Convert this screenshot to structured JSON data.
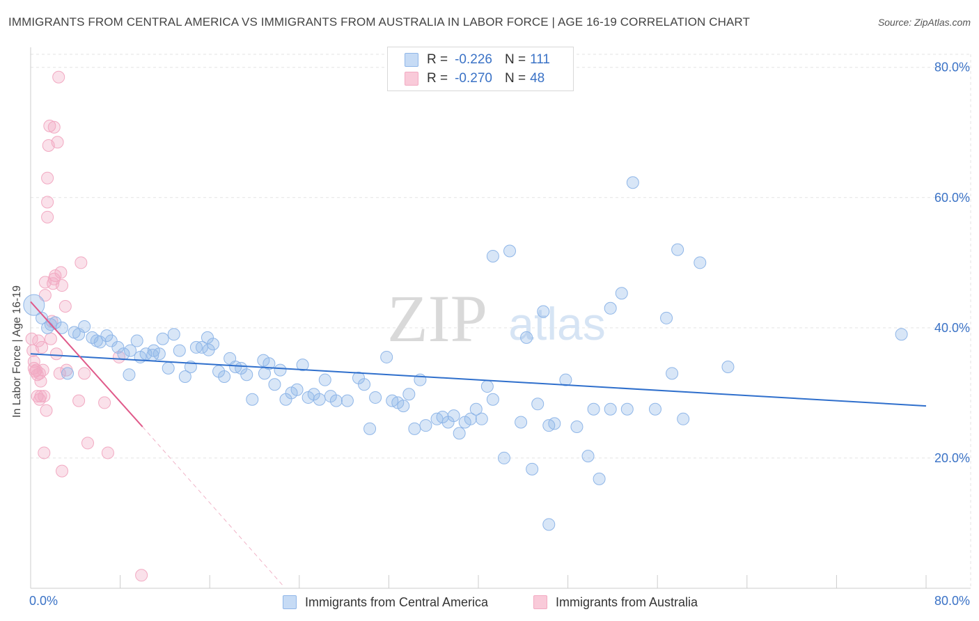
{
  "title": "IMMIGRANTS FROM CENTRAL AMERICA VS IMMIGRANTS FROM AUSTRALIA IN LABOR FORCE | AGE 16-19 CORRELATION CHART",
  "source": "Source: ZipAtlas.com",
  "watermark": {
    "zip": "ZIP",
    "atlas": "atlas"
  },
  "legend": {
    "r_label": "R =",
    "n_label": "N =",
    "series": [
      {
        "r": "-0.226",
        "n": "111"
      },
      {
        "r": "-0.270",
        "n": "48"
      }
    ]
  },
  "chart_data": {
    "type": "scatter",
    "title": "IMMIGRANTS FROM CENTRAL AMERICA VS IMMIGRANTS FROM AUSTRALIA IN LABOR FORCE | AGE 16-19 CORRELATION CHART",
    "xlabel": "",
    "ylabel": "In Labor Force | Age 16-19",
    "xlim": [
      0,
      80
    ],
    "ylim": [
      0,
      82
    ],
    "x_tick_labels": [
      "0.0%",
      "80.0%"
    ],
    "y_ticks": [
      20,
      40,
      60,
      80
    ],
    "y_tick_labels": [
      "20.0%",
      "40.0%",
      "60.0%",
      "80.0%"
    ],
    "grid": true,
    "series": [
      {
        "name": "Immigrants from Central America",
        "color": "#8fb6e8",
        "line_color": "#2f6fcc",
        "trend": {
          "x0": 0,
          "y0": 36.0,
          "x1": 80,
          "y1": 28.0
        },
        "points": [
          [
            0.3,
            43.5
          ],
          [
            1.0,
            41.5
          ],
          [
            1.8,
            40.5
          ],
          [
            2.8,
            40.0
          ],
          [
            3.3,
            33.0
          ],
          [
            4.3,
            39.0
          ],
          [
            4.8,
            40.2
          ],
          [
            5.5,
            38.5
          ],
          [
            6.2,
            37.8
          ],
          [
            6.8,
            38.8
          ],
          [
            7.2,
            38.0
          ],
          [
            7.8,
            37.0
          ],
          [
            8.3,
            36.0
          ],
          [
            8.8,
            32.8
          ],
          [
            9.5,
            38.0
          ],
          [
            9.8,
            35.5
          ],
          [
            10.3,
            36.0
          ],
          [
            11.0,
            36.5
          ],
          [
            11.5,
            36.0
          ],
          [
            11.8,
            38.3
          ],
          [
            12.3,
            33.8
          ],
          [
            12.8,
            39.0
          ],
          [
            13.3,
            36.5
          ],
          [
            13.8,
            32.5
          ],
          [
            14.3,
            34.0
          ],
          [
            14.8,
            37.0
          ],
          [
            15.3,
            37.0
          ],
          [
            15.8,
            38.5
          ],
          [
            16.3,
            37.5
          ],
          [
            16.8,
            33.3
          ],
          [
            17.3,
            32.5
          ],
          [
            17.8,
            35.3
          ],
          [
            18.3,
            34.0
          ],
          [
            18.8,
            33.8
          ],
          [
            19.3,
            32.8
          ],
          [
            19.8,
            29.0
          ],
          [
            20.8,
            35.0
          ],
          [
            21.3,
            34.5
          ],
          [
            21.8,
            31.3
          ],
          [
            22.3,
            33.5
          ],
          [
            22.8,
            29.0
          ],
          [
            23.3,
            30.0
          ],
          [
            23.8,
            30.5
          ],
          [
            24.3,
            34.3
          ],
          [
            24.8,
            29.3
          ],
          [
            25.3,
            29.8
          ],
          [
            25.8,
            29.0
          ],
          [
            26.3,
            32.0
          ],
          [
            26.8,
            29.5
          ],
          [
            27.3,
            28.8
          ],
          [
            28.3,
            28.8
          ],
          [
            29.3,
            32.3
          ],
          [
            29.8,
            31.3
          ],
          [
            30.3,
            24.5
          ],
          [
            30.8,
            29.3
          ],
          [
            31.8,
            35.5
          ],
          [
            32.3,
            28.8
          ],
          [
            32.8,
            28.5
          ],
          [
            33.3,
            28.0
          ],
          [
            33.8,
            29.8
          ],
          [
            34.3,
            24.5
          ],
          [
            34.8,
            32.0
          ],
          [
            35.3,
            25.0
          ],
          [
            36.3,
            26.0
          ],
          [
            36.8,
            26.3
          ],
          [
            37.3,
            25.5
          ],
          [
            37.8,
            26.5
          ],
          [
            38.3,
            23.8
          ],
          [
            38.8,
            25.5
          ],
          [
            39.3,
            26.0
          ],
          [
            39.8,
            27.5
          ],
          [
            40.3,
            26.0
          ],
          [
            40.8,
            31.0
          ],
          [
            41.3,
            29.0
          ],
          [
            42.3,
            20.0
          ],
          [
            43.8,
            25.5
          ],
          [
            44.8,
            18.3
          ],
          [
            45.3,
            28.3
          ],
          [
            46.3,
            25.0
          ],
          [
            46.8,
            25.3
          ],
          [
            47.8,
            32.0
          ],
          [
            48.8,
            24.8
          ],
          [
            49.8,
            20.3
          ],
          [
            50.3,
            27.5
          ],
          [
            50.8,
            16.8
          ],
          [
            51.8,
            27.5
          ],
          [
            53.3,
            27.5
          ],
          [
            55.8,
            27.5
          ],
          [
            56.8,
            41.5
          ],
          [
            57.3,
            33.0
          ],
          [
            58.3,
            26.0
          ],
          [
            62.3,
            34.0
          ],
          [
            41.3,
            51.0
          ],
          [
            42.8,
            51.8
          ],
          [
            44.3,
            38.5
          ],
          [
            45.8,
            42.5
          ],
          [
            51.8,
            43.0
          ],
          [
            52.8,
            45.3
          ],
          [
            53.8,
            62.3
          ],
          [
            57.8,
            52.0
          ],
          [
            59.8,
            50.0
          ],
          [
            46.3,
            9.8
          ],
          [
            77.8,
            39.0
          ],
          [
            1.5,
            40.0
          ],
          [
            2.2,
            40.8
          ],
          [
            3.9,
            39.3
          ],
          [
            5.9,
            38.0
          ],
          [
            8.9,
            36.5
          ],
          [
            10.9,
            35.8
          ],
          [
            15.9,
            36.6
          ],
          [
            20.9,
            33.0
          ]
        ]
      },
      {
        "name": "Immigrants from Australia",
        "color": "#f2a9c2",
        "line_color": "#e05a8a",
        "trend": {
          "x0": 0,
          "y0": 44.0,
          "x1": 10.0,
          "y1": 24.8,
          "dashed_to": {
            "x": 22.5,
            "y": 0.5
          }
        },
        "points": [
          [
            0.1,
            38.3
          ],
          [
            0.2,
            36.5
          ],
          [
            0.3,
            34.8
          ],
          [
            0.3,
            33.8
          ],
          [
            0.4,
            33.3
          ],
          [
            0.5,
            33.5
          ],
          [
            0.6,
            32.8
          ],
          [
            0.6,
            29.5
          ],
          [
            0.7,
            38.0
          ],
          [
            0.8,
            33.0
          ],
          [
            0.8,
            29.0
          ],
          [
            0.9,
            31.8
          ],
          [
            0.9,
            29.5
          ],
          [
            1.0,
            37.0
          ],
          [
            1.1,
            33.5
          ],
          [
            1.2,
            29.5
          ],
          [
            1.2,
            20.8
          ],
          [
            1.3,
            45.0
          ],
          [
            1.3,
            47.0
          ],
          [
            1.4,
            27.3
          ],
          [
            1.5,
            57.0
          ],
          [
            1.5,
            59.3
          ],
          [
            1.5,
            63.0
          ],
          [
            1.6,
            68.0
          ],
          [
            1.7,
            71.0
          ],
          [
            1.8,
            38.3
          ],
          [
            1.9,
            41.0
          ],
          [
            2.0,
            46.8
          ],
          [
            2.1,
            70.8
          ],
          [
            2.1,
            47.5
          ],
          [
            2.2,
            48.0
          ],
          [
            2.3,
            36.0
          ],
          [
            2.4,
            68.5
          ],
          [
            2.5,
            78.5
          ],
          [
            2.6,
            33.0
          ],
          [
            2.7,
            48.5
          ],
          [
            2.8,
            46.5
          ],
          [
            2.8,
            18.0
          ],
          [
            3.1,
            43.3
          ],
          [
            3.2,
            33.5
          ],
          [
            4.3,
            28.8
          ],
          [
            4.5,
            50.0
          ],
          [
            4.8,
            33.0
          ],
          [
            5.1,
            22.3
          ],
          [
            6.6,
            28.5
          ],
          [
            6.9,
            20.8
          ],
          [
            7.9,
            35.5
          ],
          [
            9.9,
            2.0
          ]
        ]
      }
    ]
  }
}
